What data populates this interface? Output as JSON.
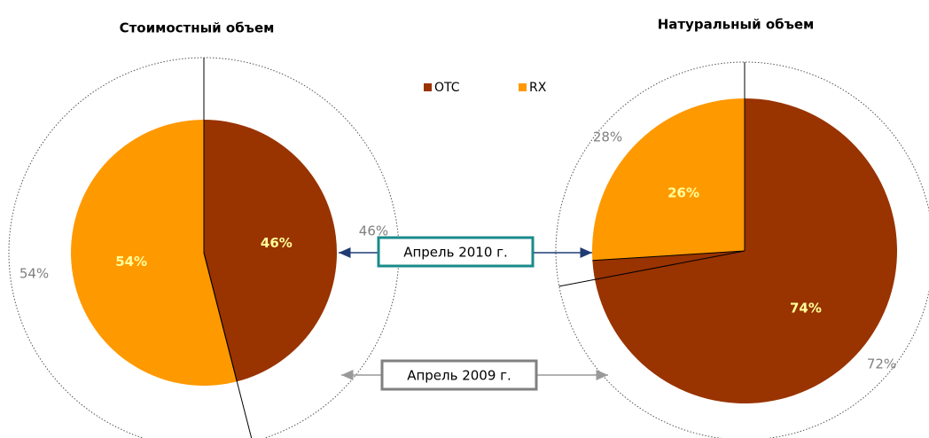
{
  "chart_data": {
    "type": "pie",
    "categories": [
      "OTC",
      "RX"
    ],
    "colors": [
      "#993300",
      "#ff9900"
    ],
    "series_names": [
      "Апрель 2010 г.",
      "Апрель 2009 г."
    ],
    "panels": [
      {
        "title": "Стоимостный объем",
        "series": [
          {
            "values": [
              46,
              54
            ],
            "value_labels": [
              "46%",
              "54%"
            ]
          },
          {
            "values": [
              46,
              54
            ],
            "value_labels": [
              "46%",
              "54%"
            ]
          }
        ]
      },
      {
        "title": "Натуральный объем",
        "series": [
          {
            "values": [
              74,
              26
            ],
            "value_labels": [
              "74%",
              "26%"
            ]
          },
          {
            "values": [
              72,
              28
            ],
            "value_labels": [
              "72%",
              "28%"
            ]
          }
        ]
      }
    ]
  }
}
